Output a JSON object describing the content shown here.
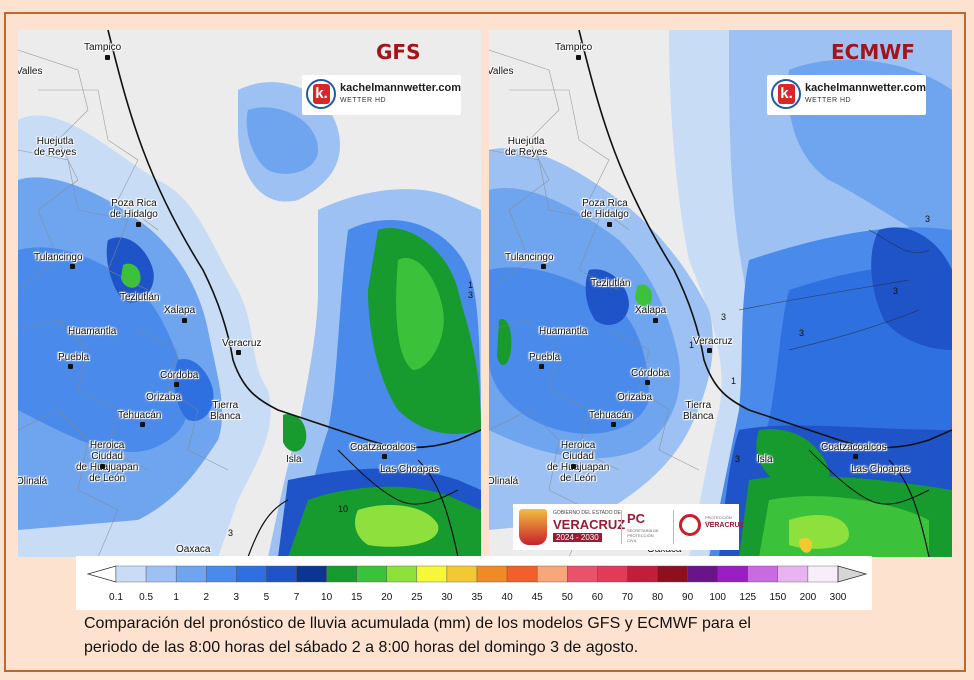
{
  "maps": {
    "gfs": {
      "title": "GFS",
      "logo_brand": "kachelmannwetter.com",
      "logo_tag": "WETTER HD",
      "contours": [
        "1",
        "3",
        "10",
        "3"
      ]
    },
    "ecmwf": {
      "title": "ECMWF",
      "logo_brand": "kachelmannwetter.com",
      "logo_tag": "WETTER HD",
      "contours": [
        "3",
        "3",
        "3",
        "1",
        "3",
        "3",
        "1"
      ]
    }
  },
  "cities": [
    {
      "name": "Tampico"
    },
    {
      "name": "Valles"
    },
    {
      "name": "Huejutla\nde Reyes"
    },
    {
      "name": "Poza Rica\nde Hidalgo"
    },
    {
      "name": "Tulancingo"
    },
    {
      "name": "Teziutlán"
    },
    {
      "name": "Xalapa"
    },
    {
      "name": "Huamantla"
    },
    {
      "name": "Puebla"
    },
    {
      "name": "Veracruz"
    },
    {
      "name": "Córdoba"
    },
    {
      "name": "Orizaba"
    },
    {
      "name": "Tierra\nBlanca"
    },
    {
      "name": "Tehuacán"
    },
    {
      "name": "Heroica\nCiudad\nde Huajuapan\nde León"
    },
    {
      "name": "Isla"
    },
    {
      "name": "Coatzacoalcos"
    },
    {
      "name": "Las Choapas"
    },
    {
      "name": "Oaxaca"
    },
    {
      "name": "Olinalá"
    }
  ],
  "government_logo": {
    "line1": "GOBIERNO DEL ESTADO DE",
    "state": "VERACRUZ",
    "years": "2024 - 2030",
    "pc": "PC",
    "pc_sub": "SECRETARÍA DE PROTECCIÓN CIVIL",
    "pv_line1": "PROTECCIÓN CIVIL",
    "pv_line2": "VERACRUZ"
  },
  "legend": {
    "units": "mm",
    "bins": [
      {
        "label": "0.1",
        "color": "#c8dcf6"
      },
      {
        "label": "0.5",
        "color": "#9cc1f2"
      },
      {
        "label": "1",
        "color": "#6fa4ee"
      },
      {
        "label": "2",
        "color": "#4a8aea"
      },
      {
        "label": "3",
        "color": "#2f70e0"
      },
      {
        "label": "5",
        "color": "#1f54c8"
      },
      {
        "label": "7",
        "color": "#0c3592"
      },
      {
        "label": "10",
        "color": "#179a2e"
      },
      {
        "label": "15",
        "color": "#3cc23a"
      },
      {
        "label": "20",
        "color": "#8ee03c"
      },
      {
        "label": "25",
        "color": "#f7f73a"
      },
      {
        "label": "30",
        "color": "#f2c933"
      },
      {
        "label": "35",
        "color": "#f08a26"
      },
      {
        "label": "40",
        "color": "#f25f2c"
      },
      {
        "label": "45",
        "color": "#f7a77a"
      },
      {
        "label": "50",
        "color": "#e8526a"
      },
      {
        "label": "60",
        "color": "#e33a5a"
      },
      {
        "label": "70",
        "color": "#c21d3a"
      },
      {
        "label": "80",
        "color": "#8c1020"
      },
      {
        "label": "90",
        "color": "#6a148a"
      },
      {
        "label": "100",
        "color": "#9a1fc0"
      },
      {
        "label": "125",
        "color": "#c86ae0"
      },
      {
        "label": "150",
        "color": "#e7b4ef"
      },
      {
        "label": "200",
        "color": "#f8eefa"
      },
      {
        "label": "300",
        "color": "#d6d6d6"
      }
    ]
  },
  "caption": {
    "line1": "Comparación del pronóstico de lluvia acumulada (mm) de los modelos GFS y ECMWF para el",
    "line2": "periodo de las 8:00 horas del sábado 2 a 8:00 horas del domingo 3 de agosto."
  },
  "colors": {
    "background": "#fde3cf",
    "border": "#b86a34",
    "title_red": "#a3141a"
  }
}
